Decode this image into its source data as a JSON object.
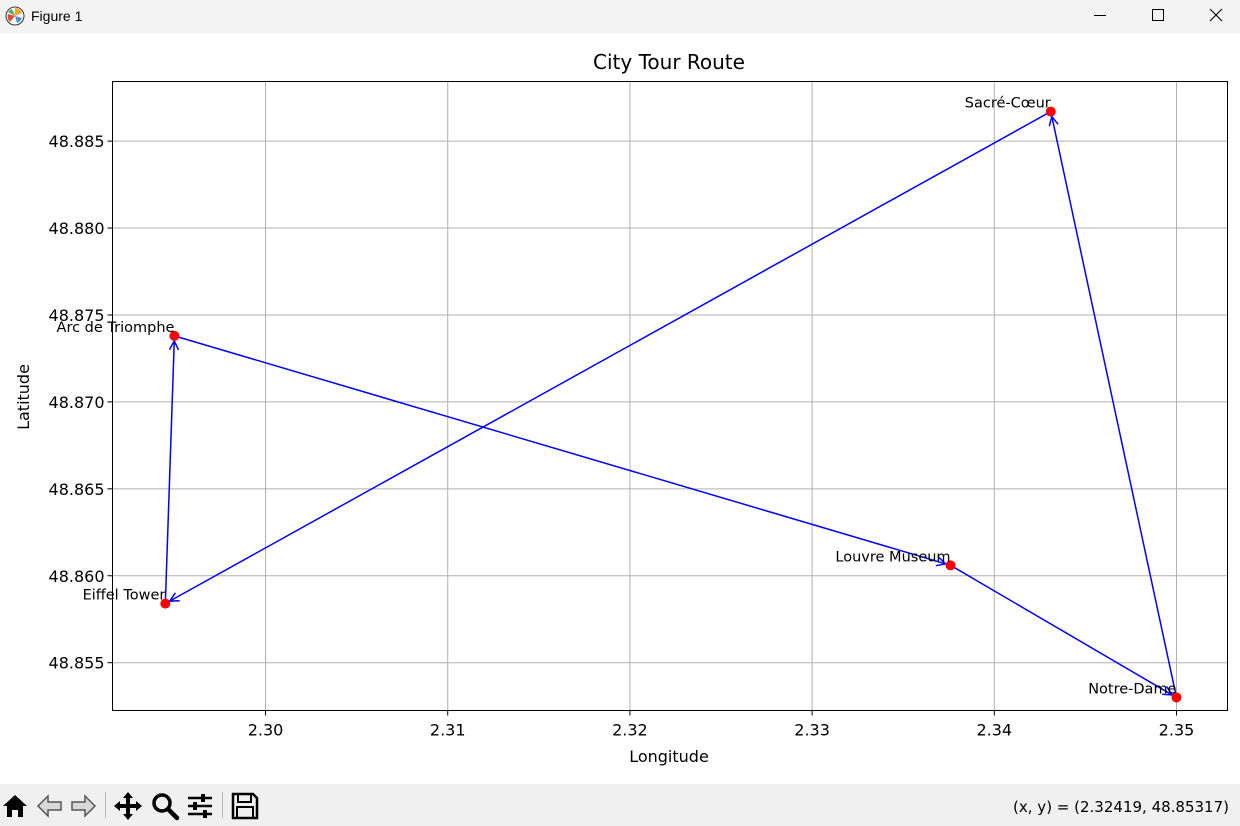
{
  "window": {
    "title": "Figure 1",
    "icon": "matplotlib-logo-icon",
    "controls": [
      "minimize-icon",
      "maximize-icon",
      "close-icon"
    ]
  },
  "chart_data": {
    "type": "line",
    "title": "City Tour Route",
    "xlabel": "Longitude",
    "ylabel": "Latitude",
    "xlim": [
      2.2916,
      2.3528
    ],
    "ylim": [
      48.85225,
      48.88843
    ],
    "xticks": [
      2.3,
      2.31,
      2.32,
      2.33,
      2.34,
      2.35
    ],
    "xtick_labels": [
      "2.30",
      "2.31",
      "2.32",
      "2.33",
      "2.34",
      "2.35"
    ],
    "yticks": [
      48.855,
      48.86,
      48.865,
      48.87,
      48.875,
      48.88,
      48.885
    ],
    "ytick_labels": [
      "48.855",
      "48.860",
      "48.865",
      "48.870",
      "48.875",
      "48.880",
      "48.885"
    ],
    "grid": true,
    "point_color": "#ff0000",
    "route_color": "#0000ff",
    "points": [
      {
        "name": "Eiffel Tower",
        "x": 2.2945,
        "y": 48.8584
      },
      {
        "name": "Louvre Museum",
        "x": 2.3376,
        "y": 48.8606
      },
      {
        "name": "Notre-Dame",
        "x": 2.35,
        "y": 48.853
      },
      {
        "name": "Sacré-Cœur",
        "x": 2.3431,
        "y": 48.8867
      },
      {
        "name": "Arc de Triomphe",
        "x": 2.295,
        "y": 48.8738
      }
    ],
    "route": [
      {
        "from": "Arc de Triomphe",
        "to": "Louvre Museum"
      },
      {
        "from": "Louvre Museum",
        "to": "Notre-Dame"
      },
      {
        "from": "Notre-Dame",
        "to": "Sacré-Cœur"
      },
      {
        "from": "Sacré-Cœur",
        "to": "Eiffel Tower"
      },
      {
        "from": "Eiffel Tower",
        "to": "Arc de Triomphe"
      }
    ]
  },
  "toolbar": {
    "buttons": [
      "home-icon",
      "back-icon",
      "forward-icon",
      "pan-icon",
      "zoom-icon",
      "configure-subplots-icon",
      "save-icon"
    ],
    "coords": "(x, y) = (2.32419, 48.85317)"
  }
}
